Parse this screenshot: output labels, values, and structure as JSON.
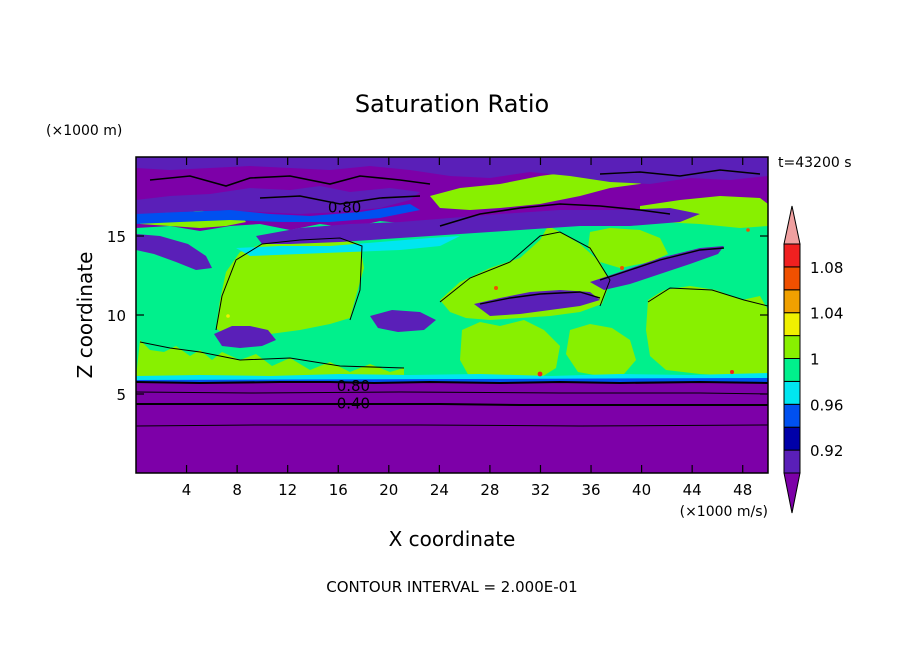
{
  "chart_data": {
    "type": "heatmap",
    "title": "Saturation Ratio",
    "xlabel": "X coordinate",
    "ylabel": "Z coordinate",
    "x_unit": "(×1000 m/s)",
    "y_unit": "(×1000 m)",
    "time_label": "t=43200 s",
    "footer": "CONTOUR INTERVAL = 2.000E-01",
    "xlim": [
      0,
      50
    ],
    "ylim": [
      0,
      20
    ],
    "x_ticks": [
      4,
      8,
      12,
      16,
      20,
      24,
      28,
      32,
      36,
      40,
      44,
      48
    ],
    "y_ticks": [
      5,
      10,
      15
    ],
    "colorbar": {
      "levels": [
        "0.92",
        "0.96",
        "1",
        "1.04",
        "1.08"
      ],
      "bands": [
        {
          "color": "#7d00a8"
        },
        {
          "color": "#5a1fb8"
        },
        {
          "color": "#0000a8"
        },
        {
          "color": "#0050f0"
        },
        {
          "color": "#00e6f0"
        },
        {
          "color": "#00f08c"
        },
        {
          "color": "#88f000"
        },
        {
          "color": "#f0f000"
        },
        {
          "color": "#f0a000"
        },
        {
          "color": "#f05000"
        },
        {
          "color": "#f02020"
        },
        {
          "color": "#f0a0a0"
        }
      ],
      "bottom_color": "#7d00a8",
      "top_color": "#f0a0a0"
    },
    "contour_labels": [
      {
        "text": "0.80",
        "x": 16.5,
        "z": 16.8
      },
      {
        "text": "0.80",
        "x": 17.2,
        "z": 5.5
      },
      {
        "text": "0.40",
        "x": 17.2,
        "z": 4.4
      }
    ],
    "regions": {
      "lower_layer": {
        "z_range": [
          0,
          5.8
        ],
        "value": "< 0.90"
      },
      "cloud_layer": {
        "z_range": [
          5.8,
          16
        ],
        "value": "≈ 1"
      },
      "upper_layer": {
        "z_range": [
          16,
          20
        ],
        "value": "< 0.96"
      }
    }
  }
}
